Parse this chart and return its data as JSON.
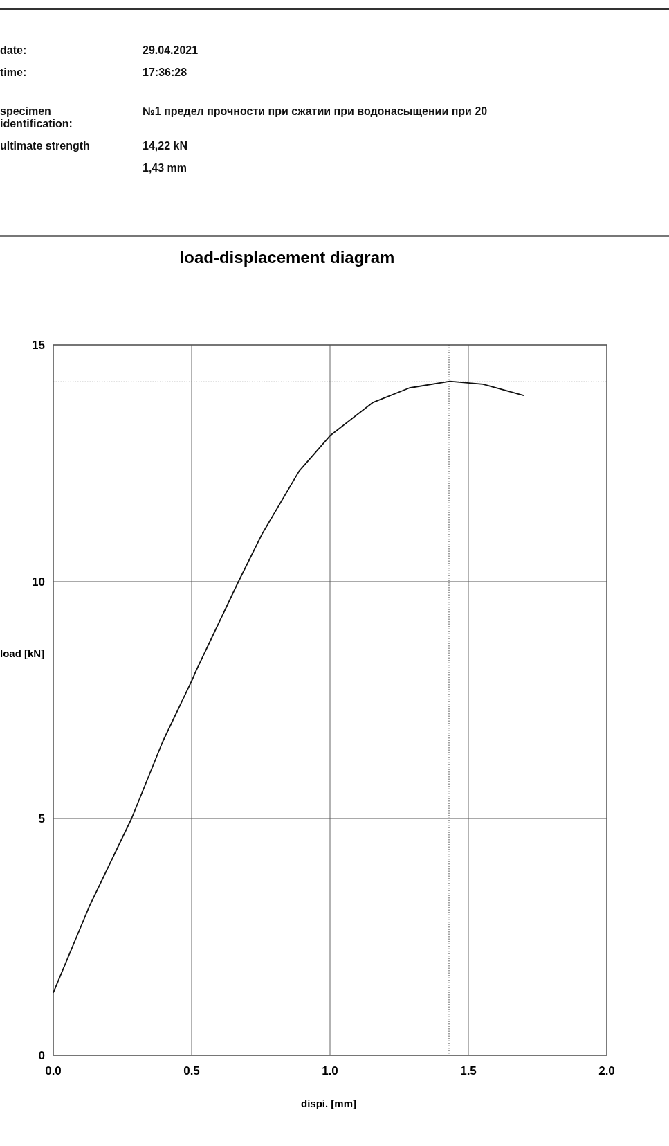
{
  "chart_data": {
    "type": "line",
    "title": "load-displacement diagram",
    "xlabel": "dispi. [mm]",
    "ylabel": "load [kN]",
    "annotations": [
      "date:",
      "29.04.2021",
      "time:",
      "17:36:28",
      "specimen identification:",
      "№1 предел прочности при сжатии при водонасыщении при 20",
      "ultimate strength",
      "14,22 kN",
      "1,43 mm"
    ],
    "series": [
      {
        "color": "#111111",
        "x": [
          0,
          0.13,
          0.283,
          0.396,
          0.503,
          0.516,
          0.669,
          0.755,
          0.888,
          1.0,
          1.154,
          1.287,
          1.433,
          1.553,
          1.7
        ],
        "values": [
          1.32,
          3.14,
          5,
          6.63,
          7.94,
          8.12,
          10,
          11.01,
          12.33,
          13.08,
          13.78,
          14.09,
          14.23,
          14.17,
          13.93
        ]
      }
    ],
    "xlim": [
      0,
      2
    ],
    "ylim": [
      0,
      15
    ],
    "xticks": [
      {
        "value": 0,
        "label": "0.0"
      },
      {
        "value": 0.5,
        "label": "0.5"
      },
      {
        "value": 1,
        "label": "1.0"
      },
      {
        "value": 1.5,
        "label": "1.5"
      },
      {
        "value": 2,
        "label": "2.0"
      }
    ],
    "yticks": [
      0,
      5,
      10,
      15
    ],
    "grid": true,
    "line_style": "solid",
    "ref_lines": [
      {
        "axis": "y",
        "value": 14.22,
        "line_style": "dotted"
      },
      {
        "axis": "x",
        "value": 1.43,
        "line_style": "dotted"
      }
    ]
  }
}
